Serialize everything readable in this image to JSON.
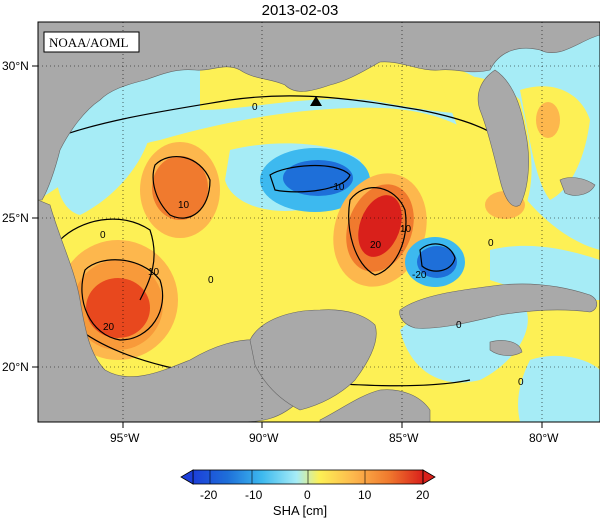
{
  "map": {
    "date_title": "2013-02-03",
    "credit": "NOAA/AOML",
    "lat_ticks": [
      "20°N",
      "25°N",
      "30°N"
    ],
    "lon_ticks": [
      "95°W",
      "90°W",
      "85°W",
      "80°W"
    ],
    "contour_labels": [
      "0",
      "10",
      "-10",
      "20",
      "-20"
    ],
    "marker": "triangle-marker",
    "colors": {
      "land": "#a9a9a9",
      "neg_strong": "#1e6fd9",
      "neg_mid": "#3db9ef",
      "neg_weak": "#a6ecf6",
      "pos_weak": "#fdf055",
      "pos_mid": "#fdb74d",
      "pos_strong": "#e8481e",
      "pos_max": "#d9201b"
    }
  },
  "colorbar": {
    "label": "SHA [cm]",
    "ticks": [
      "-20",
      "-10",
      "0",
      "10",
      "20"
    ],
    "range": [
      -20,
      20
    ]
  }
}
